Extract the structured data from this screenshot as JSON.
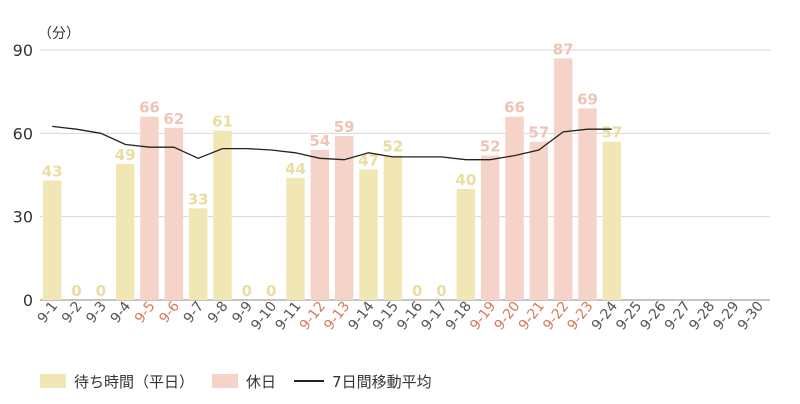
{
  "chart_data": {
    "type": "bar",
    "unit_label": "（分）",
    "yticks": [
      0,
      30,
      60,
      90
    ],
    "ylim": [
      0,
      90
    ],
    "grid": true,
    "categories": [
      "9-1",
      "9-2",
      "9-3",
      "9-4",
      "9-5",
      "9-6",
      "9-7",
      "9-8",
      "9-9",
      "9-10",
      "9-11",
      "9-12",
      "9-13",
      "9-14",
      "9-15",
      "9-16",
      "9-17",
      "9-18",
      "9-19",
      "9-20",
      "9-21",
      "9-22",
      "9-23",
      "9-24",
      "9-25",
      "9-26",
      "9-27",
      "9-28",
      "9-29",
      "9-30"
    ],
    "series": [
      {
        "name": "待ち時間（平日）",
        "color": "#f1e7b4",
        "label_color": "#e9dea0",
        "values": [
          43,
          0,
          0,
          49,
          null,
          null,
          33,
          61,
          0,
          0,
          44,
          null,
          null,
          47,
          52,
          0,
          0,
          40,
          null,
          null,
          null,
          null,
          null,
          57,
          null,
          null,
          null,
          null,
          null,
          null
        ]
      },
      {
        "name": "休日",
        "color": "#f5d3c8",
        "label_color": "#efc4b6",
        "values": [
          null,
          null,
          null,
          null,
          66,
          62,
          null,
          null,
          null,
          null,
          null,
          54,
          59,
          null,
          null,
          null,
          null,
          null,
          52,
          66,
          57,
          87,
          69,
          null,
          null,
          null,
          null,
          null,
          null,
          null
        ]
      },
      {
        "name": "7日間移動平均",
        "type": "line",
        "color": "#222222",
        "values": [
          62.5,
          61.5,
          60,
          56,
          55,
          55,
          51,
          54.5,
          54.5,
          54,
          53,
          51,
          50.5,
          53,
          51.5,
          51.5,
          51.5,
          50.5,
          50.5,
          52,
          54,
          60.5,
          61.5,
          61.5,
          null,
          null,
          null,
          null,
          null,
          null
        ]
      }
    ],
    "holiday_tick_color": "#d77a5a",
    "normal_tick_color": "#555555",
    "holiday_indices": [
      4,
      5,
      11,
      12,
      18,
      19,
      20,
      21,
      22
    ]
  }
}
